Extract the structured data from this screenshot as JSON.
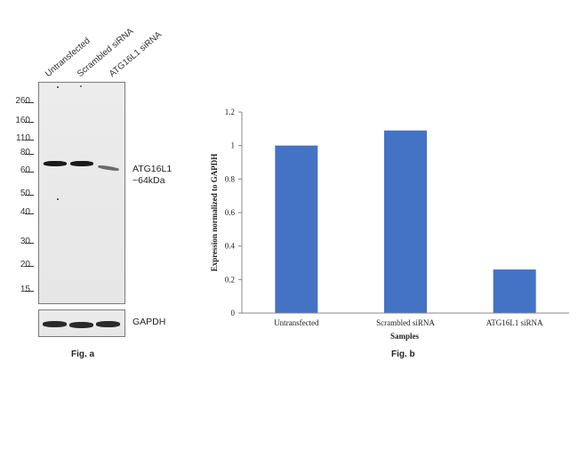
{
  "western_blot": {
    "lanes": [
      "Untransfected",
      "Scrambled siRNA",
      "ATG16L1 siRNA"
    ],
    "mw_markers": [
      "260",
      "160",
      "110",
      "80",
      "60",
      "50",
      "40",
      "30",
      "20",
      "15"
    ],
    "target_label": "ATG16L1",
    "target_size": "~64kDa",
    "loading_control": "GAPDH",
    "figure_label": "Fig. a"
  },
  "chart_data": {
    "type": "bar",
    "categories": [
      "Untransfected",
      "Scrambled siRNA",
      "ATG16L1 siRNA"
    ],
    "values": [
      1.0,
      1.09,
      0.26
    ],
    "ylabel": "Expression normalized to GAPDH",
    "xlabel": "Samples",
    "ylim": [
      0,
      1.2
    ],
    "yticks": [
      "0",
      "0.2",
      "0.4",
      "0.6",
      "0.8",
      "1",
      "1.2"
    ],
    "bar_color": "#4472c4",
    "grid": false,
    "figure_label": "Fig. b"
  }
}
